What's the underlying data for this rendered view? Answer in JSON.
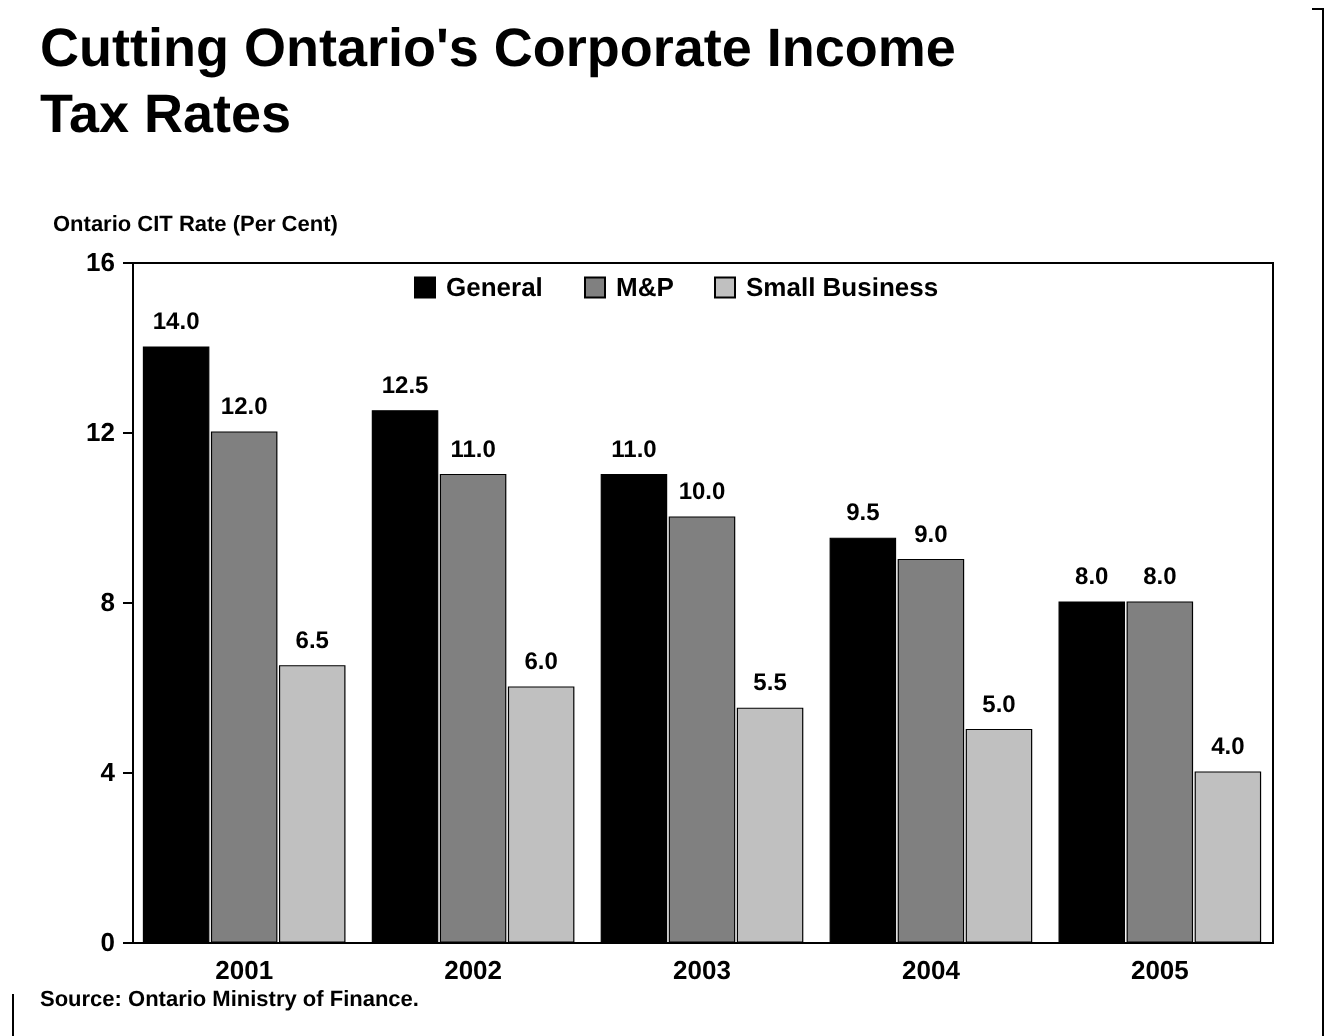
{
  "chart_data": {
    "type": "bar",
    "title": "Cutting Ontario's Corporate Income Tax Rates",
    "ylabel": "Ontario CIT Rate (Per Cent)",
    "annotations": [
      "Source:  Ontario Ministry of Finance."
    ],
    "categories": [
      "2001",
      "2002",
      "2003",
      "2004",
      "2005"
    ],
    "series": [
      {
        "name": "General",
        "color": "#000000",
        "values": [
          14.0,
          12.5,
          11.0,
          9.5,
          8.0
        ],
        "value_labels": [
          "14.0",
          "12.5",
          "11.0",
          "9.5",
          "8.0"
        ]
      },
      {
        "name": "M&P",
        "color": "#808080",
        "values": [
          12.0,
          11.0,
          10.0,
          9.0,
          8.0
        ],
        "value_labels": [
          "12.0",
          "11.0",
          "10.0",
          "9.0",
          "8.0"
        ]
      },
      {
        "name": "Small Business",
        "color": "#c0c0c0",
        "values": [
          6.5,
          6.0,
          5.5,
          5.0,
          4.0
        ],
        "value_labels": [
          "6.5",
          "6.0",
          "5.5",
          "5.0",
          "4.0"
        ]
      }
    ],
    "ylim": [
      0,
      16
    ],
    "yticks": [
      0,
      4,
      8,
      12,
      16
    ],
    "grid": false,
    "legend": "top"
  }
}
